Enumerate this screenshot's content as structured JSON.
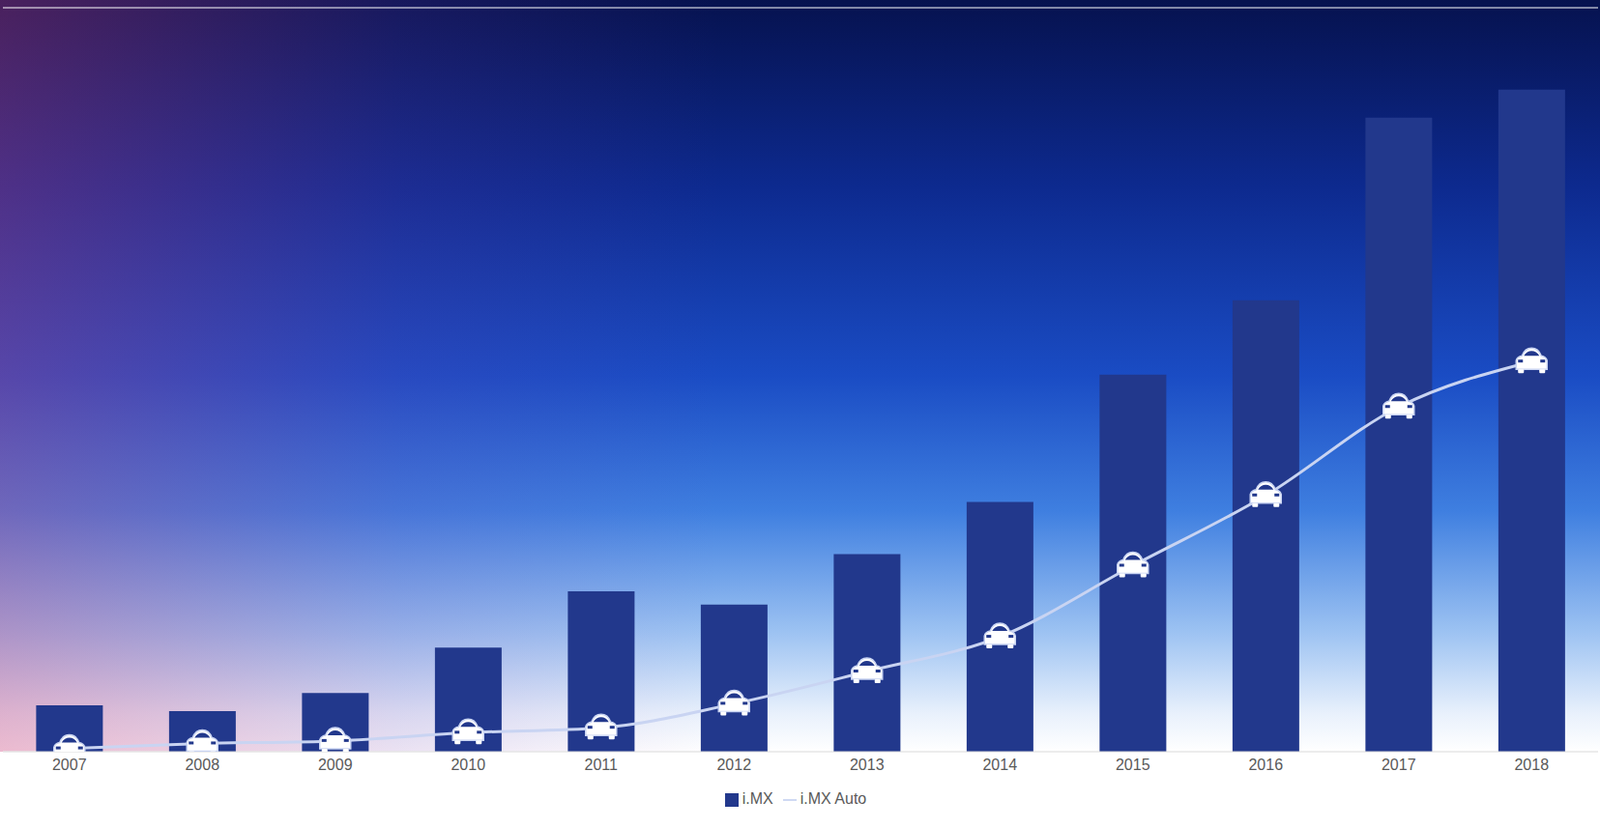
{
  "chart_data": {
    "type": "bar",
    "categories": [
      "2007",
      "2008",
      "2009",
      "2010",
      "2011",
      "2012",
      "2013",
      "2014",
      "2015",
      "2016",
      "2017",
      "2018"
    ],
    "series": [
      {
        "name": "i.MX",
        "type": "bar",
        "color": "#22388c",
        "values": [
          0.56,
          0.49,
          0.71,
          1.26,
          1.94,
          1.78,
          2.39,
          3.02,
          4.56,
          5.46,
          7.67,
          8.01
        ]
      },
      {
        "name": "i.MX Auto",
        "type": "line",
        "color": "#c9d4f2",
        "marker": "car",
        "values": [
          0.04,
          0.1,
          0.13,
          0.23,
          0.29,
          0.58,
          0.97,
          1.39,
          2.25,
          3.1,
          4.17,
          4.72
        ]
      }
    ],
    "ylim": [
      0,
      9
    ],
    "yticks": [
      0,
      1,
      2,
      3,
      4,
      5,
      6,
      7,
      8,
      9
    ],
    "grid": true,
    "legend": "bottom",
    "tick_labels": "x"
  }
}
